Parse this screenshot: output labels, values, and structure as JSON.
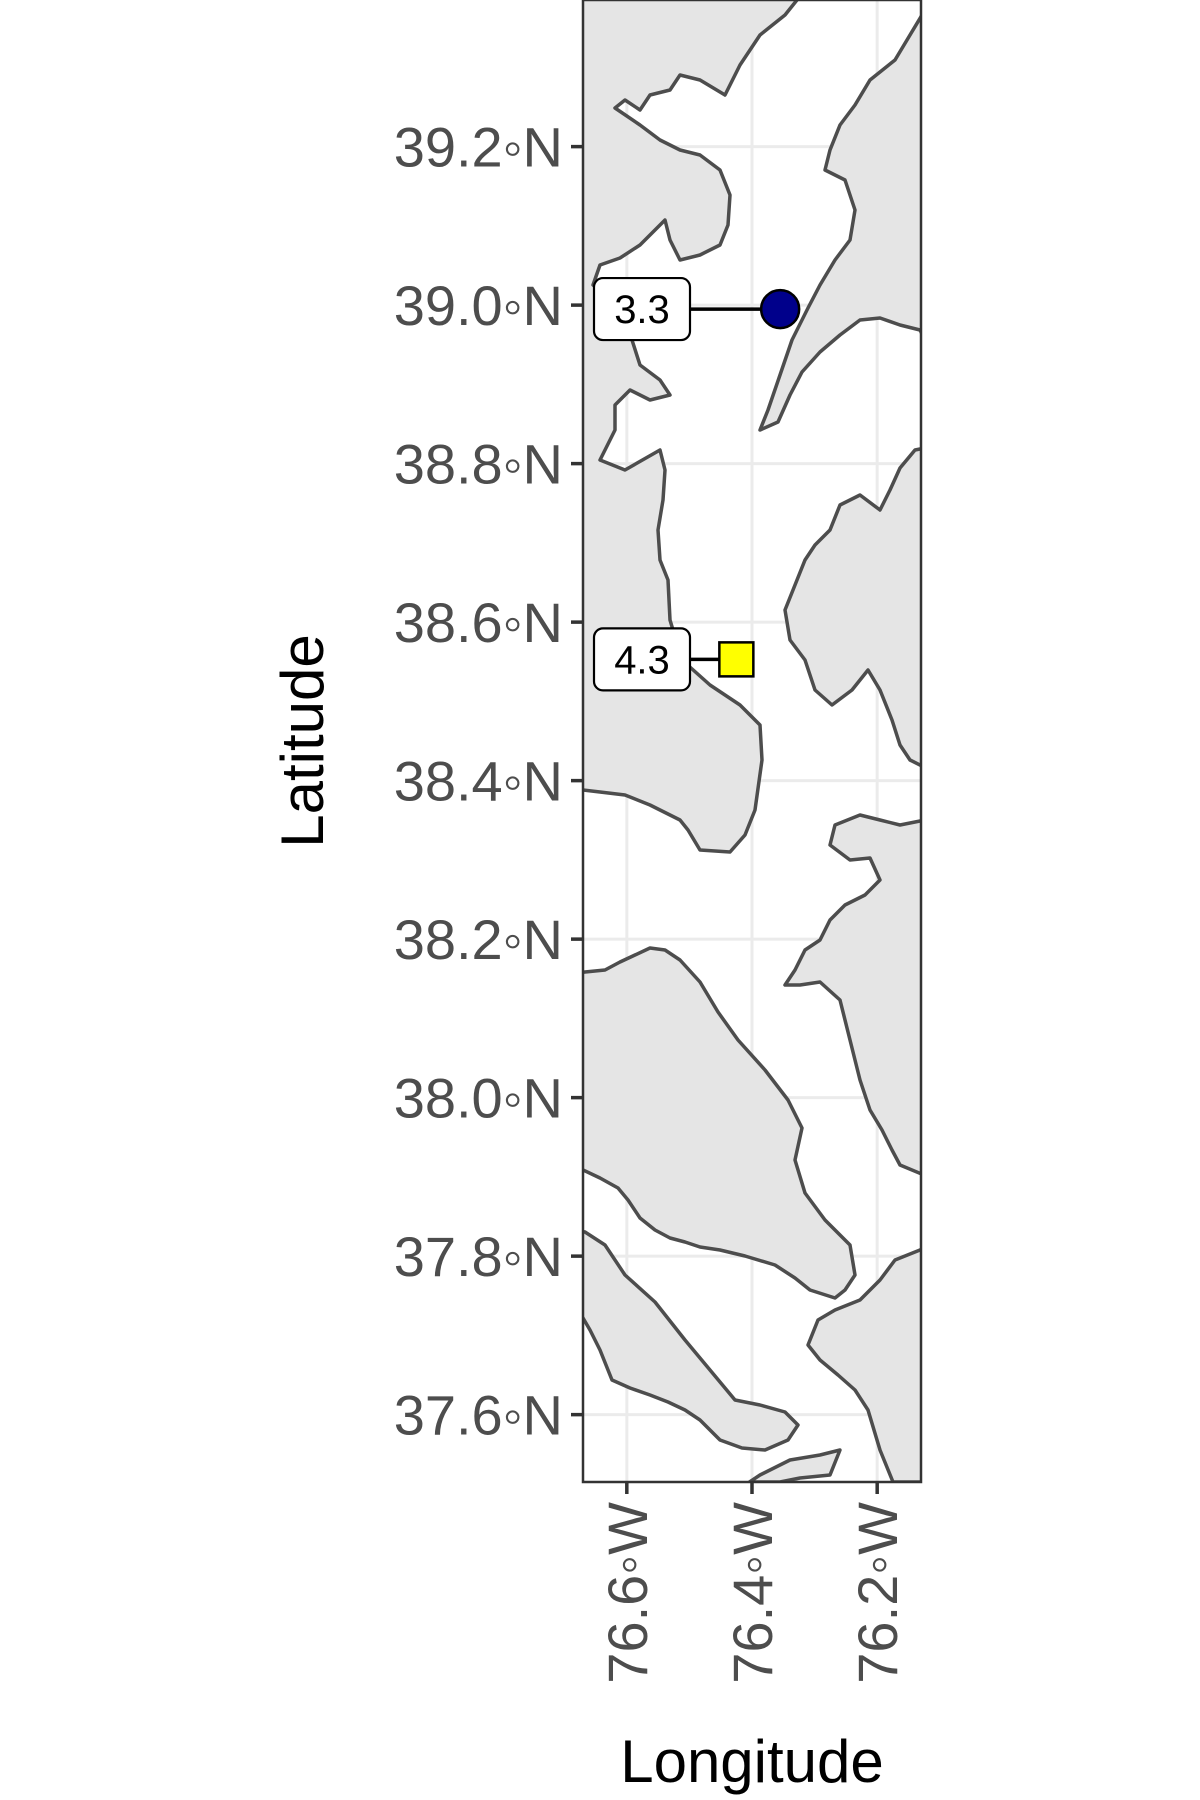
{
  "chart_data": {
    "type": "scatter",
    "subtype": "map",
    "title": "",
    "xlabel": "Longitude",
    "ylabel": "Latitude",
    "xlim": [
      -76.67,
      -76.13
    ],
    "ylim": [
      37.515,
      39.385
    ],
    "x_ticks": [
      {
        "value": -76.6,
        "label": "76.6◦W"
      },
      {
        "value": -76.4,
        "label": "76.4◦W"
      },
      {
        "value": -76.2,
        "label": "76.2◦W"
      }
    ],
    "y_ticks": [
      {
        "value": 39.2,
        "label": "39.2◦N"
      },
      {
        "value": 39.0,
        "label": "39.0◦N"
      },
      {
        "value": 38.8,
        "label": "38.8◦N"
      },
      {
        "value": 38.6,
        "label": "38.6◦N"
      },
      {
        "value": 38.4,
        "label": "38.4◦N"
      },
      {
        "value": 38.2,
        "label": "38.2◦N"
      },
      {
        "value": 38.0,
        "label": "38.0◦N"
      },
      {
        "value": 37.8,
        "label": "37.8◦N"
      },
      {
        "value": 37.6,
        "label": "37.6◦N"
      }
    ],
    "grid": true,
    "legend": "none",
    "points": [
      {
        "lon": -76.355,
        "lat": 38.995,
        "label": "3.3",
        "shape": "circle",
        "color": "#00008b"
      },
      {
        "lon": -76.425,
        "lat": 38.553,
        "label": "4.3",
        "shape": "square",
        "color": "#ffff00"
      }
    ],
    "colors": {
      "land": "#e5e5e5",
      "coast": "#4d4d4d",
      "water": "#ffffff",
      "grid": "#ebebeb",
      "panel_border": "#333333"
    }
  }
}
